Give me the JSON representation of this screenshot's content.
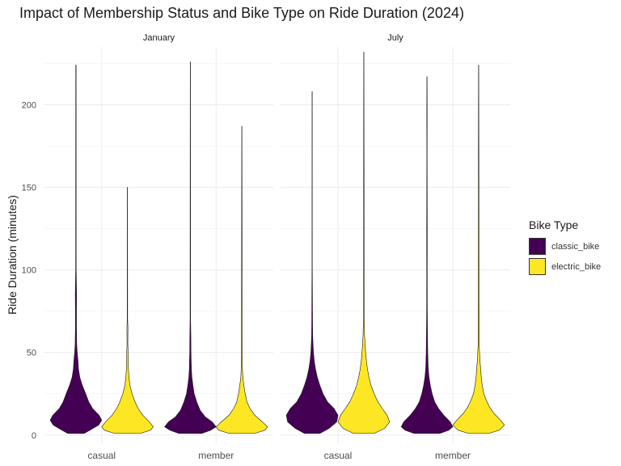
{
  "chart_data": {
    "type": "violin",
    "title": "Impact of Membership Status and Bike Type on Ride Duration (2024)",
    "xlabel": "",
    "ylabel": "Ride Duration (minutes)",
    "ylim": [
      -5,
      235
    ],
    "yticks": [
      0,
      50,
      100,
      150,
      200
    ],
    "categories": [
      "casual",
      "member"
    ],
    "facets": [
      "January",
      "July"
    ],
    "legend": {
      "title": "Bike Type",
      "position": "right",
      "items": [
        {
          "label": "classic_bike",
          "color": "#440154"
        },
        {
          "label": "electric_bike",
          "color": "#FDE725"
        }
      ]
    },
    "violins": [
      {
        "facet": "January",
        "category": "casual",
        "series": "classic_bike",
        "max": 224,
        "profile": [
          [
            1,
            0.32
          ],
          [
            3,
            0.55
          ],
          [
            6,
            0.88
          ],
          [
            9,
            1.0
          ],
          [
            12,
            0.9
          ],
          [
            16,
            0.65
          ],
          [
            20,
            0.5
          ],
          [
            25,
            0.38
          ],
          [
            30,
            0.25
          ],
          [
            35,
            0.15
          ],
          [
            40,
            0.1
          ],
          [
            45,
            0.08
          ],
          [
            50,
            0.05
          ],
          [
            55,
            0.03
          ],
          [
            60,
            0.025
          ],
          [
            65,
            0.02
          ],
          [
            75,
            0.02
          ],
          [
            85,
            0.025
          ],
          [
            90,
            0.02
          ],
          [
            100,
            0.01
          ],
          [
            224,
            0.007
          ]
        ]
      },
      {
        "facet": "January",
        "category": "casual",
        "series": "electric_bike",
        "max": 150,
        "profile": [
          [
            1,
            0.5
          ],
          [
            3,
            0.9
          ],
          [
            5,
            1.0
          ],
          [
            8,
            0.85
          ],
          [
            12,
            0.6
          ],
          [
            16,
            0.42
          ],
          [
            20,
            0.3
          ],
          [
            25,
            0.18
          ],
          [
            30,
            0.1
          ],
          [
            35,
            0.06
          ],
          [
            40,
            0.04
          ],
          [
            45,
            0.03
          ],
          [
            50,
            0.03
          ],
          [
            55,
            0.015
          ],
          [
            65,
            0.02
          ],
          [
            70,
            0.008
          ],
          [
            150,
            0.004
          ]
        ]
      },
      {
        "facet": "January",
        "category": "member",
        "series": "classic_bike",
        "max": 226,
        "profile": [
          [
            1,
            0.45
          ],
          [
            3,
            0.8
          ],
          [
            5,
            1.0
          ],
          [
            8,
            0.85
          ],
          [
            11,
            0.58
          ],
          [
            15,
            0.38
          ],
          [
            20,
            0.25
          ],
          [
            25,
            0.15
          ],
          [
            30,
            0.1
          ],
          [
            35,
            0.06
          ],
          [
            40,
            0.04
          ],
          [
            50,
            0.025
          ],
          [
            60,
            0.02
          ],
          [
            70,
            0.01
          ],
          [
            226,
            0.004
          ]
        ]
      },
      {
        "facet": "January",
        "category": "member",
        "series": "electric_bike",
        "max": 187,
        "profile": [
          [
            1,
            0.5
          ],
          [
            3,
            0.9
          ],
          [
            5,
            1.0
          ],
          [
            8,
            0.8
          ],
          [
            12,
            0.5
          ],
          [
            16,
            0.32
          ],
          [
            20,
            0.2
          ],
          [
            25,
            0.13
          ],
          [
            30,
            0.08
          ],
          [
            35,
            0.04
          ],
          [
            40,
            0.025
          ],
          [
            50,
            0.015
          ],
          [
            187,
            0.004
          ]
        ]
      },
      {
        "facet": "July",
        "category": "casual",
        "series": "classic_bike",
        "max": 208,
        "profile": [
          [
            1,
            0.3
          ],
          [
            4,
            0.65
          ],
          [
            8,
            0.95
          ],
          [
            12,
            1.0
          ],
          [
            16,
            0.85
          ],
          [
            20,
            0.6
          ],
          [
            25,
            0.42
          ],
          [
            30,
            0.3
          ],
          [
            35,
            0.2
          ],
          [
            40,
            0.13
          ],
          [
            45,
            0.08
          ],
          [
            50,
            0.05
          ],
          [
            55,
            0.035
          ],
          [
            60,
            0.02
          ],
          [
            70,
            0.015
          ],
          [
            85,
            0.012
          ],
          [
            100,
            0.006
          ],
          [
            208,
            0.004
          ]
        ]
      },
      {
        "facet": "July",
        "category": "casual",
        "series": "electric_bike",
        "max": 232,
        "profile": [
          [
            1,
            0.4
          ],
          [
            4,
            0.8
          ],
          [
            8,
            1.0
          ],
          [
            12,
            0.9
          ],
          [
            16,
            0.72
          ],
          [
            20,
            0.55
          ],
          [
            25,
            0.4
          ],
          [
            30,
            0.28
          ],
          [
            35,
            0.2
          ],
          [
            40,
            0.14
          ],
          [
            45,
            0.1
          ],
          [
            50,
            0.07
          ],
          [
            55,
            0.05
          ],
          [
            60,
            0.03
          ],
          [
            70,
            0.015
          ],
          [
            232,
            0.004
          ]
        ]
      },
      {
        "facet": "July",
        "category": "member",
        "series": "classic_bike",
        "max": 217,
        "profile": [
          [
            1,
            0.5
          ],
          [
            3,
            0.85
          ],
          [
            5,
            1.0
          ],
          [
            8,
            0.9
          ],
          [
            12,
            0.65
          ],
          [
            16,
            0.45
          ],
          [
            20,
            0.3
          ],
          [
            25,
            0.2
          ],
          [
            30,
            0.13
          ],
          [
            35,
            0.08
          ],
          [
            40,
            0.05
          ],
          [
            50,
            0.03
          ],
          [
            60,
            0.02
          ],
          [
            70,
            0.015
          ],
          [
            80,
            0.012
          ],
          [
            100,
            0.01
          ],
          [
            110,
            0.012
          ],
          [
            125,
            0.012
          ],
          [
            150,
            0.008
          ],
          [
            170,
            0.006
          ],
          [
            195,
            0.008
          ],
          [
            217,
            0.004
          ]
        ]
      },
      {
        "facet": "July",
        "category": "member",
        "series": "electric_bike",
        "max": 224,
        "profile": [
          [
            1,
            0.4
          ],
          [
            3,
            0.8
          ],
          [
            6,
            1.0
          ],
          [
            9,
            0.85
          ],
          [
            13,
            0.6
          ],
          [
            17,
            0.42
          ],
          [
            21,
            0.3
          ],
          [
            25,
            0.2
          ],
          [
            30,
            0.14
          ],
          [
            35,
            0.1
          ],
          [
            40,
            0.08
          ],
          [
            45,
            0.05
          ],
          [
            55,
            0.02
          ],
          [
            224,
            0.004
          ]
        ]
      }
    ]
  }
}
